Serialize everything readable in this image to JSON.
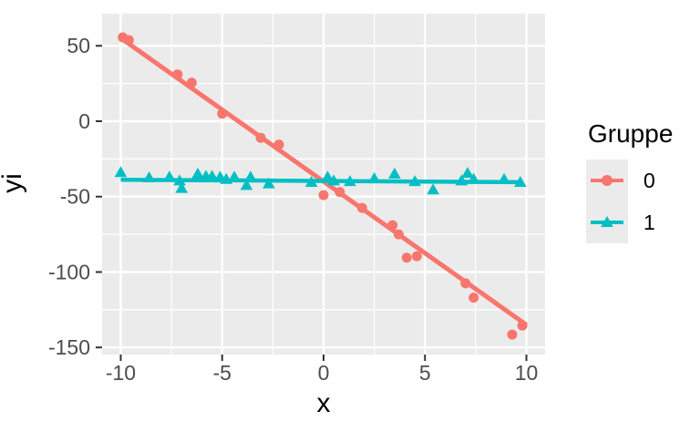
{
  "chart_data": {
    "type": "scatter",
    "title": "",
    "xlabel": "x",
    "ylabel": "yi",
    "xlim": [
      -10.92,
      10.92
    ],
    "ylim": [
      -154.7,
      71.3
    ],
    "x_ticks": [
      -10,
      -5,
      0,
      5,
      10
    ],
    "y_ticks": [
      50,
      0,
      -50,
      -100,
      -150
    ],
    "x_minor": [
      -7.5,
      -2.5,
      2.5,
      7.5
    ],
    "y_minor": [
      25,
      -25,
      -75,
      -125
    ],
    "grid": "on",
    "legend": {
      "title": "Gruppe",
      "position": "right",
      "entries": [
        {
          "label": "0",
          "color": "#F8766D",
          "marker": "circle"
        },
        {
          "label": "1",
          "color": "#00BFC4",
          "marker": "triangle"
        }
      ]
    },
    "series": [
      {
        "name": "0",
        "color": "#F8766D",
        "marker": "circle",
        "points": [
          [
            -9.9,
            55.6
          ],
          [
            -9.6,
            53.8
          ],
          [
            -7.2,
            31
          ],
          [
            -6.5,
            25.5
          ],
          [
            -5.0,
            5
          ],
          [
            -3.1,
            -11
          ],
          [
            -2.2,
            -15.5
          ],
          [
            0.0,
            -49
          ],
          [
            0.8,
            -47
          ],
          [
            1.9,
            -57.5
          ],
          [
            3.4,
            -69
          ],
          [
            3.7,
            -75
          ],
          [
            4.1,
            -90.5
          ],
          [
            4.6,
            -89.5
          ],
          [
            7.0,
            -107.5
          ],
          [
            7.4,
            -117
          ],
          [
            9.3,
            -141.5
          ],
          [
            9.8,
            -135.5
          ]
        ],
        "trend_line": {
          "x1": -9.9,
          "y1": 54.2,
          "x2": 10.0,
          "y2": -135.0
        }
      },
      {
        "name": "1",
        "color": "#00BFC4",
        "marker": "triangle",
        "points": [
          [
            -10.0,
            -34
          ],
          [
            -8.6,
            -37.5
          ],
          [
            -7.6,
            -37
          ],
          [
            -7.1,
            -39.5
          ],
          [
            -7.0,
            -44.5
          ],
          [
            -6.2,
            -35
          ],
          [
            -5.8,
            -36.5
          ],
          [
            -5.5,
            -36.5
          ],
          [
            -5.1,
            -37
          ],
          [
            -4.8,
            -38.5
          ],
          [
            -4.4,
            -37
          ],
          [
            -3.8,
            -42.5
          ],
          [
            -3.6,
            -37
          ],
          [
            -2.7,
            -41.5
          ],
          [
            -0.6,
            -40.5
          ],
          [
            0.2,
            -37
          ],
          [
            0.5,
            -39.5
          ],
          [
            1.3,
            -40
          ],
          [
            2.5,
            -38
          ],
          [
            3.5,
            -35
          ],
          [
            4.5,
            -40
          ],
          [
            5.4,
            -45.5
          ],
          [
            6.8,
            -39.5
          ],
          [
            7.1,
            -34.5
          ],
          [
            7.4,
            -38.5
          ],
          [
            8.9,
            -38.5
          ],
          [
            9.7,
            -40.5
          ]
        ],
        "trend_line": {
          "x1": -10.0,
          "y1": -38.8,
          "x2": 9.7,
          "y2": -40.4
        }
      }
    ],
    "style": {
      "panel_bg": "#EBEBEB",
      "grid_color": "#FFFFFF",
      "tick_color": "#333333",
      "tick_label_color": "#4D4D4D",
      "axis_title_color": "#000000"
    }
  }
}
